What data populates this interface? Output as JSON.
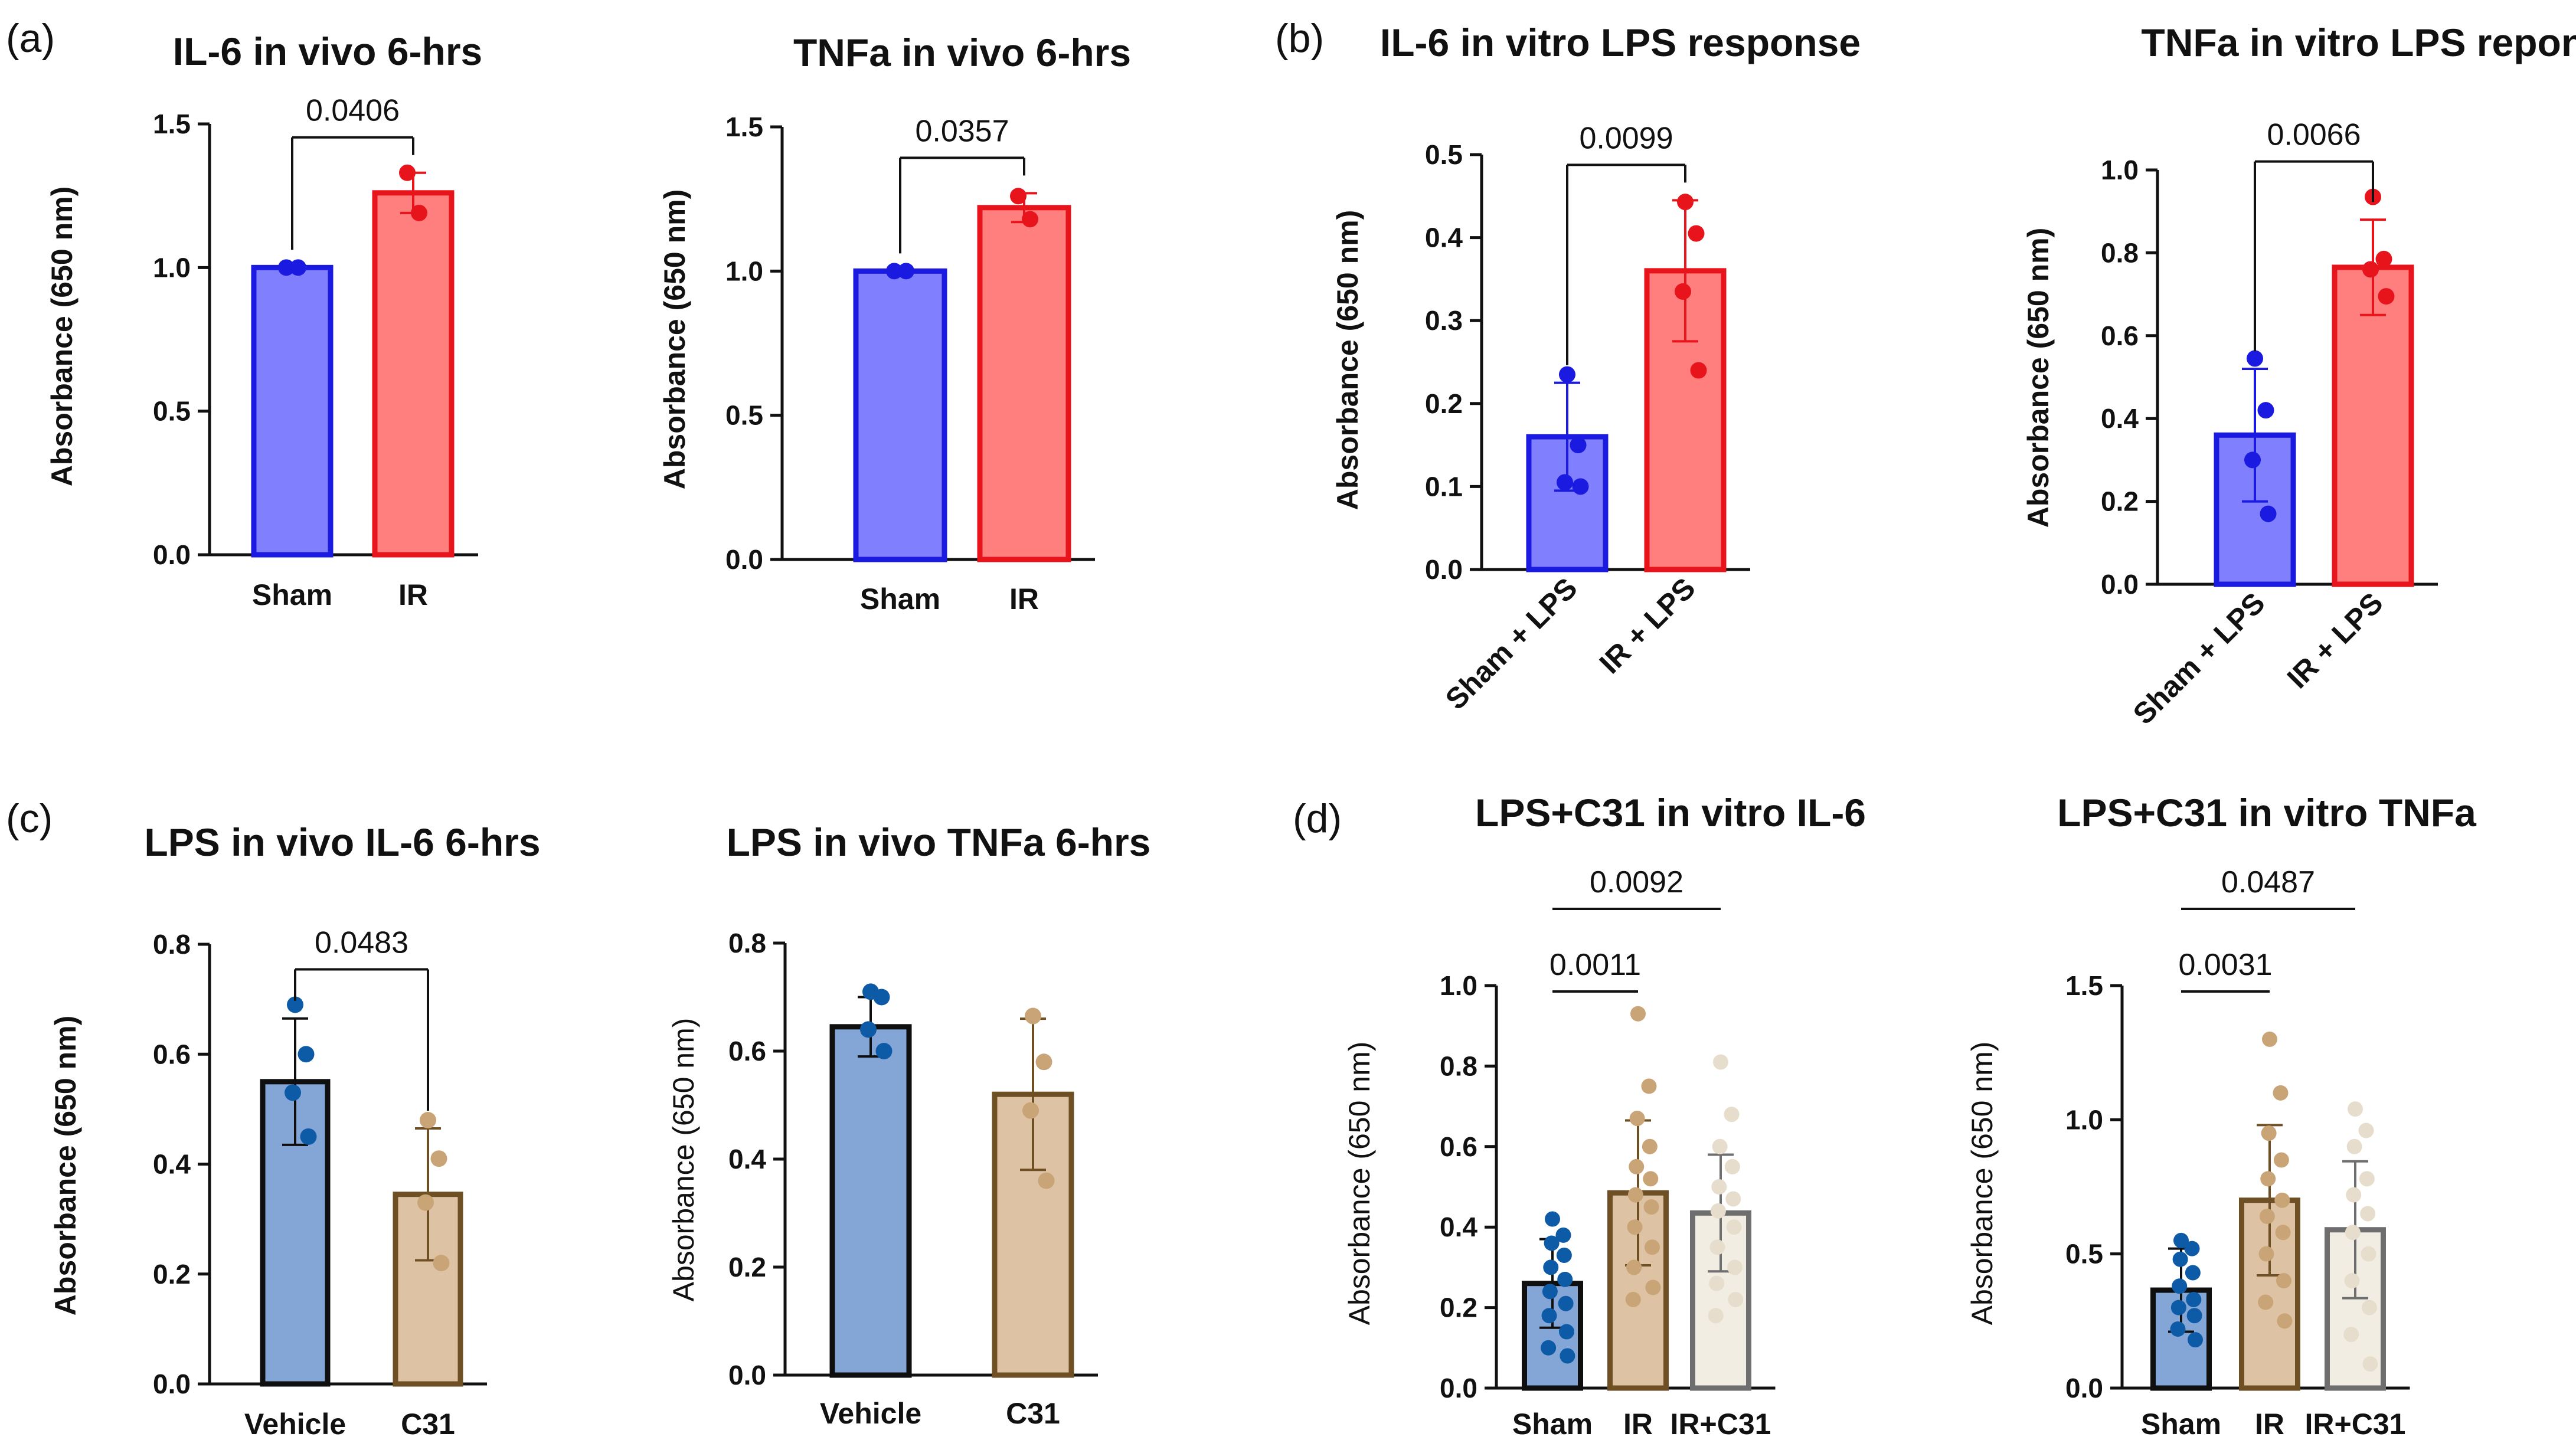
{
  "panel_labels": [
    "(a)",
    "(b)",
    "(c)",
    "(d)"
  ],
  "chart_data": [
    {
      "type": "bar",
      "panel": "(a)",
      "title": "IL-6 in vivo 6-hrs",
      "ylabel": "Absorbance (650 nm)",
      "ylim": [
        0,
        1.5
      ],
      "yticks": [
        "0.0",
        "0.5",
        "1.0",
        "1.5"
      ],
      "categories": [
        "Sham",
        "IR"
      ],
      "values": [
        1.0,
        1.26
      ],
      "errors": [
        0.0,
        0.07
      ],
      "points": [
        [
          1.0,
          1.0
        ],
        [
          1.33,
          1.19
        ]
      ],
      "colors": {
        "fill": [
          "#8080ff",
          "#ff7f7f"
        ],
        "edge": [
          "#1a1ae0",
          "#e8141c"
        ],
        "point": [
          "#1a1ae0",
          "#e8141c"
        ]
      },
      "comparisons": [
        {
          "from": 0,
          "to": 1,
          "label": "0.0406"
        }
      ]
    },
    {
      "type": "bar",
      "panel": "(a)",
      "title": "TNFa in vivo 6-hrs",
      "ylabel": "Absorbance (650 nm)",
      "ylim": [
        0,
        1.5
      ],
      "yticks": [
        "0.0",
        "0.5",
        "1.0",
        "1.5"
      ],
      "categories": [
        "Sham",
        "IR"
      ],
      "values": [
        1.0,
        1.22
      ],
      "errors": [
        0.0,
        0.05
      ],
      "points": [
        [
          1.0,
          1.0
        ],
        [
          1.26,
          1.18
        ]
      ],
      "colors": {
        "fill": [
          "#8080ff",
          "#ff7f7f"
        ],
        "edge": [
          "#1a1ae0",
          "#e8141c"
        ],
        "point": [
          "#1a1ae0",
          "#e8141c"
        ]
      },
      "comparisons": [
        {
          "from": 0,
          "to": 1,
          "label": "0.0357"
        }
      ]
    },
    {
      "type": "bar",
      "panel": "(b)",
      "title": "IL-6 in vitro LPS response",
      "ylabel": "Absorbance (650 nm)",
      "ylim": [
        0,
        0.5
      ],
      "yticks": [
        "0.0",
        "0.1",
        "0.2",
        "0.3",
        "0.4",
        "0.5"
      ],
      "categories": [
        "Sham + LPS",
        "IR + LPS"
      ],
      "values": [
        0.16,
        0.36
      ],
      "errors": [
        0.065,
        0.085
      ],
      "points": [
        [
          0.235,
          0.15,
          0.105,
          0.1
        ],
        [
          0.443,
          0.405,
          0.335,
          0.24
        ]
      ],
      "colors": {
        "fill": [
          "#8080ff",
          "#ff7f7f"
        ],
        "edge": [
          "#1a1ae0",
          "#e8141c"
        ],
        "point": [
          "#1a1ae0",
          "#e8141c"
        ]
      },
      "comparisons": [
        {
          "from": 0,
          "to": 1,
          "label": "0.0099"
        }
      ]
    },
    {
      "type": "bar",
      "panel": "(b)",
      "title": "TNFa in vitro LPS reponse",
      "ylabel": "Absorbance (650 nm)",
      "ylim": [
        0,
        1.0
      ],
      "yticks": [
        "0.0",
        "0.2",
        "0.4",
        "0.6",
        "0.8",
        "1.0"
      ],
      "categories": [
        "Sham + LPS",
        "IR + LPS"
      ],
      "values": [
        0.36,
        0.765
      ],
      "errors": [
        0.16,
        0.115
      ],
      "points": [
        [
          0.545,
          0.42,
          0.3,
          0.17
        ],
        [
          0.935,
          0.785,
          0.76,
          0.695
        ]
      ],
      "colors": {
        "fill": [
          "#8080ff",
          "#ff7f7f"
        ],
        "edge": [
          "#1a1ae0",
          "#e8141c"
        ],
        "point": [
          "#1a1ae0",
          "#e8141c"
        ]
      },
      "comparisons": [
        {
          "from": 0,
          "to": 1,
          "label": "0.0066"
        }
      ]
    },
    {
      "type": "bar",
      "panel": "(c)",
      "title": "LPS in vivo IL-6 6-hrs",
      "ylabel": "Absorbance (650 nm)",
      "ylim": [
        0,
        0.8
      ],
      "yticks": [
        "0.0",
        "0.2",
        "0.4",
        "0.6",
        "0.8"
      ],
      "categories": [
        "Vehicle",
        "C31"
      ],
      "values": [
        0.55,
        0.345
      ],
      "errors": [
        0.115,
        0.12
      ],
      "points": [
        [
          0.69,
          0.6,
          0.53,
          0.45
        ],
        [
          0.48,
          0.41,
          0.33,
          0.22
        ]
      ],
      "colors": {
        "fill": [
          "#84a6d6",
          "#ddc3a4"
        ],
        "edge": [
          "#0f0f0f",
          "#6e5024"
        ],
        "point": [
          "#0d5aa7",
          "#c9a476"
        ]
      },
      "comparisons": [
        {
          "from": 0,
          "to": 1,
          "label": "0.0483"
        }
      ]
    },
    {
      "type": "bar",
      "panel": "(c)",
      "title": "LPS in vivo TNFa 6-hrs",
      "ylabel": "Absorbance (650 nm)",
      "ylim": [
        0,
        0.8
      ],
      "yticks": [
        "0.0",
        "0.2",
        "0.4",
        "0.6",
        "0.8"
      ],
      "categories": [
        "Vehicle",
        "C31"
      ],
      "values": [
        0.645,
        0.52
      ],
      "errors": [
        0.055,
        0.14
      ],
      "points": [
        [
          0.71,
          0.7,
          0.64,
          0.6
        ],
        [
          0.665,
          0.58,
          0.49,
          0.36
        ]
      ],
      "colors": {
        "fill": [
          "#84a6d6",
          "#ddc3a4"
        ],
        "edge": [
          "#0f0f0f",
          "#6e5024"
        ],
        "point": [
          "#0d5aa7",
          "#c9a476"
        ]
      },
      "comparisons": []
    },
    {
      "type": "bar",
      "panel": "(d)",
      "title": "LPS+C31 in vitro IL-6",
      "ylabel": "Absorbance (650 nm)",
      "ylim": [
        0,
        1.0
      ],
      "yticks": [
        "0.0",
        "0.2",
        "0.4",
        "0.6",
        "0.8",
        "1.0"
      ],
      "categories": [
        "Sham",
        "IR",
        "IR+C31"
      ],
      "values": [
        0.26,
        0.485,
        0.435
      ],
      "errors": [
        0.11,
        0.18,
        0.145
      ],
      "points": [
        [
          0.42,
          0.38,
          0.36,
          0.33,
          0.3,
          0.27,
          0.24,
          0.21,
          0.18,
          0.14,
          0.1,
          0.08
        ],
        [
          0.93,
          0.75,
          0.67,
          0.6,
          0.55,
          0.52,
          0.48,
          0.45,
          0.4,
          0.35,
          0.3,
          0.25,
          0.22
        ],
        [
          0.81,
          0.68,
          0.6,
          0.55,
          0.5,
          0.47,
          0.44,
          0.4,
          0.35,
          0.3,
          0.26,
          0.22,
          0.18
        ]
      ],
      "colors": {
        "fill": [
          "#84a6d6",
          "#ddc3a4",
          "#f2ede3"
        ],
        "edge": [
          "#0f0f0f",
          "#6e5024",
          "#6e6e6e"
        ],
        "point": [
          "#0d5aa7",
          "#c9a476",
          "#e6ddcc"
        ]
      },
      "comparisons": [
        {
          "from": 0,
          "to": 1,
          "label": "0.0011"
        },
        {
          "from": 0,
          "to": 2,
          "label": "0.0092"
        }
      ]
    },
    {
      "type": "bar",
      "panel": "(d)",
      "title": "LPS+C31 in vitro TNFa",
      "ylabel": "Absorbance (650 nm)",
      "ylim": [
        0,
        1.5
      ],
      "yticks": [
        "0.0",
        "0.5",
        "1.0",
        "1.5"
      ],
      "categories": [
        "Sham",
        "IR",
        "IR+C31"
      ],
      "values": [
        0.365,
        0.7,
        0.59
      ],
      "errors": [
        0.155,
        0.28,
        0.255
      ],
      "points": [
        [
          0.55,
          0.52,
          0.48,
          0.43,
          0.38,
          0.33,
          0.3,
          0.27,
          0.22,
          0.18
        ],
        [
          1.3,
          1.1,
          0.95,
          0.85,
          0.78,
          0.7,
          0.64,
          0.58,
          0.5,
          0.4,
          0.32,
          0.25
        ],
        [
          1.04,
          0.96,
          0.9,
          0.78,
          0.72,
          0.65,
          0.58,
          0.5,
          0.4,
          0.3,
          0.2,
          0.09
        ]
      ],
      "colors": {
        "fill": [
          "#84a6d6",
          "#ddc3a4",
          "#f2ede3"
        ],
        "edge": [
          "#0f0f0f",
          "#6e5024",
          "#6e6e6e"
        ],
        "point": [
          "#0d5aa7",
          "#c9a476",
          "#e6ddcc"
        ]
      },
      "comparisons": [
        {
          "from": 0,
          "to": 1,
          "label": "0.0031"
        },
        {
          "from": 0,
          "to": 2,
          "label": "0.0487"
        }
      ]
    }
  ]
}
